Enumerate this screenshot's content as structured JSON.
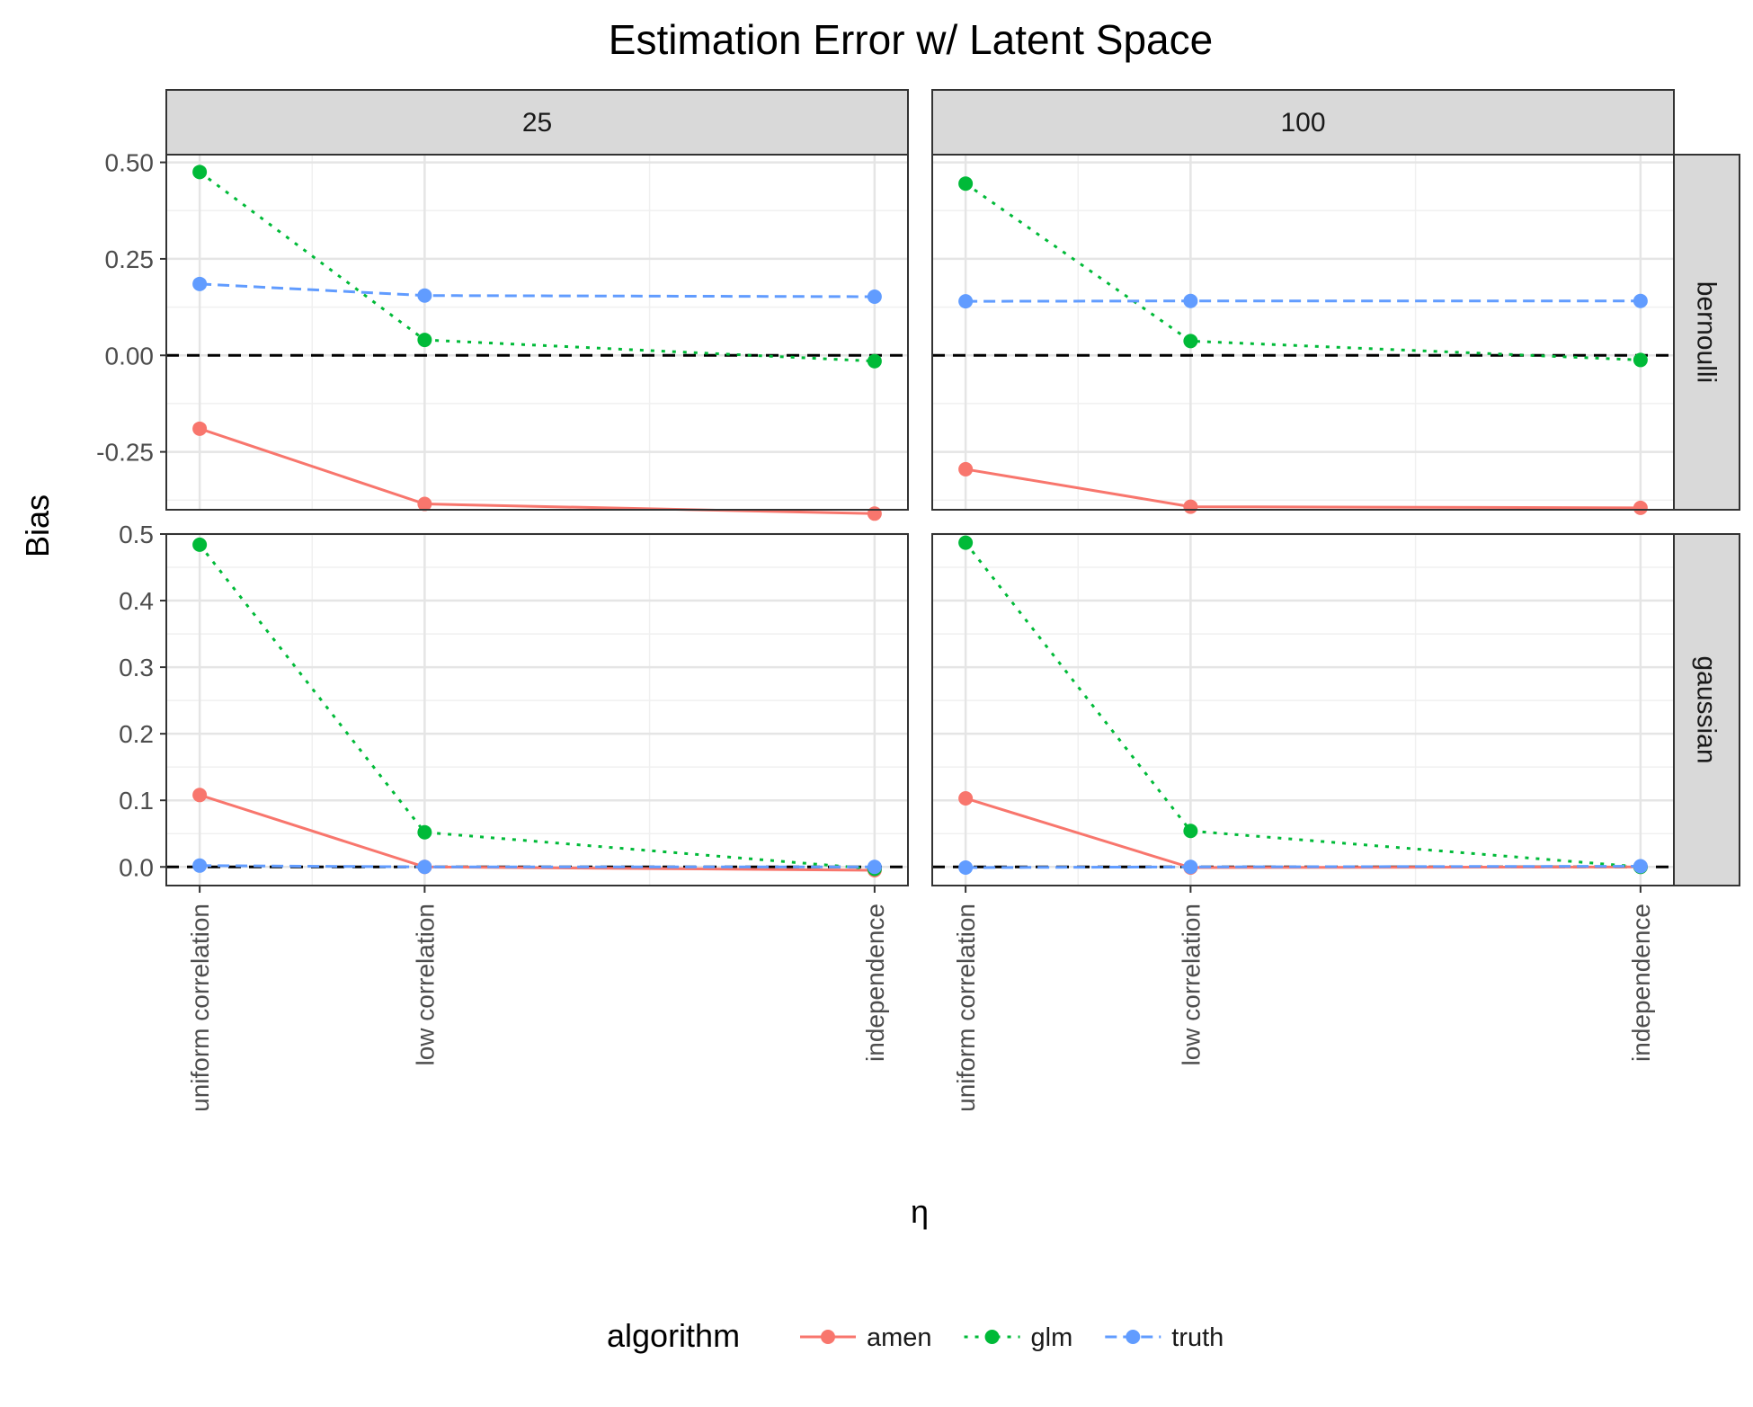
{
  "chart_data": {
    "type": "line",
    "title": "Estimation Error w/ Latent Space",
    "xlabel": "η",
    "ylabel": "Bias",
    "categories": [
      "uniform correlation",
      "low correlation",
      "independence"
    ],
    "x_positions": [
      0,
      1,
      3
    ],
    "facet_columns": [
      "25",
      "100"
    ],
    "facet_rows": [
      "bernoulli",
      "gaussian"
    ],
    "reference_line": {
      "y": 0,
      "style": "dashed",
      "color": "#000000"
    },
    "grid": true,
    "legend": {
      "title": "algorithm",
      "position": "bottom",
      "entries": [
        "amen",
        "glm",
        "truth"
      ]
    },
    "series_styles": [
      {
        "name": "amen",
        "color": "#F8766D",
        "dash": "solid"
      },
      {
        "name": "glm",
        "color": "#00BA38",
        "dash": "dotted"
      },
      {
        "name": "truth",
        "color": "#619CFF",
        "dash": "dashed"
      }
    ],
    "rows": [
      {
        "name": "bernoulli",
        "ylim": [
          -0.4,
          0.52
        ],
        "yticks": [
          -0.25,
          0,
          0.25,
          0.5
        ],
        "ytick_labels": [
          "-0.25",
          "0.00",
          "0.25",
          "0.50"
        ],
        "panels": [
          {
            "column": "25",
            "series": [
              {
                "name": "amen",
                "values": [
                  -0.19,
                  -0.385,
                  -0.41
                ]
              },
              {
                "name": "glm",
                "values": [
                  0.475,
                  0.04,
                  -0.015
                ]
              },
              {
                "name": "truth",
                "values": [
                  0.185,
                  0.155,
                  0.152
                ]
              }
            ]
          },
          {
            "column": "100",
            "series": [
              {
                "name": "amen",
                "values": [
                  -0.295,
                  -0.392,
                  -0.395
                ]
              },
              {
                "name": "glm",
                "values": [
                  0.445,
                  0.037,
                  -0.012
                ]
              },
              {
                "name": "truth",
                "values": [
                  0.14,
                  0.141,
                  0.141
                ]
              }
            ]
          }
        ]
      },
      {
        "name": "gaussian",
        "ylim": [
          -0.028,
          0.5
        ],
        "yticks": [
          0,
          0.1,
          0.2,
          0.3,
          0.4,
          0.5
        ],
        "ytick_labels": [
          "0.0",
          "0.1",
          "0.2",
          "0.3",
          "0.4",
          "0.5"
        ],
        "panels": [
          {
            "column": "25",
            "series": [
              {
                "name": "amen",
                "values": [
                  0.108,
                  0,
                  -0.005
                ]
              },
              {
                "name": "glm",
                "values": [
                  0.484,
                  0.052,
                  -0.003
                ]
              },
              {
                "name": "truth",
                "values": [
                  0.002,
                  0,
                  0
                ]
              }
            ]
          },
          {
            "column": "100",
            "series": [
              {
                "name": "amen",
                "values": [
                  0.103,
                  -0.001,
                  0
                ]
              },
              {
                "name": "glm",
                "values": [
                  0.487,
                  0.054,
                  0
                ]
              },
              {
                "name": "truth",
                "values": [
                  -0.001,
                  0,
                  0.001
                ]
              }
            ]
          }
        ]
      }
    ]
  }
}
